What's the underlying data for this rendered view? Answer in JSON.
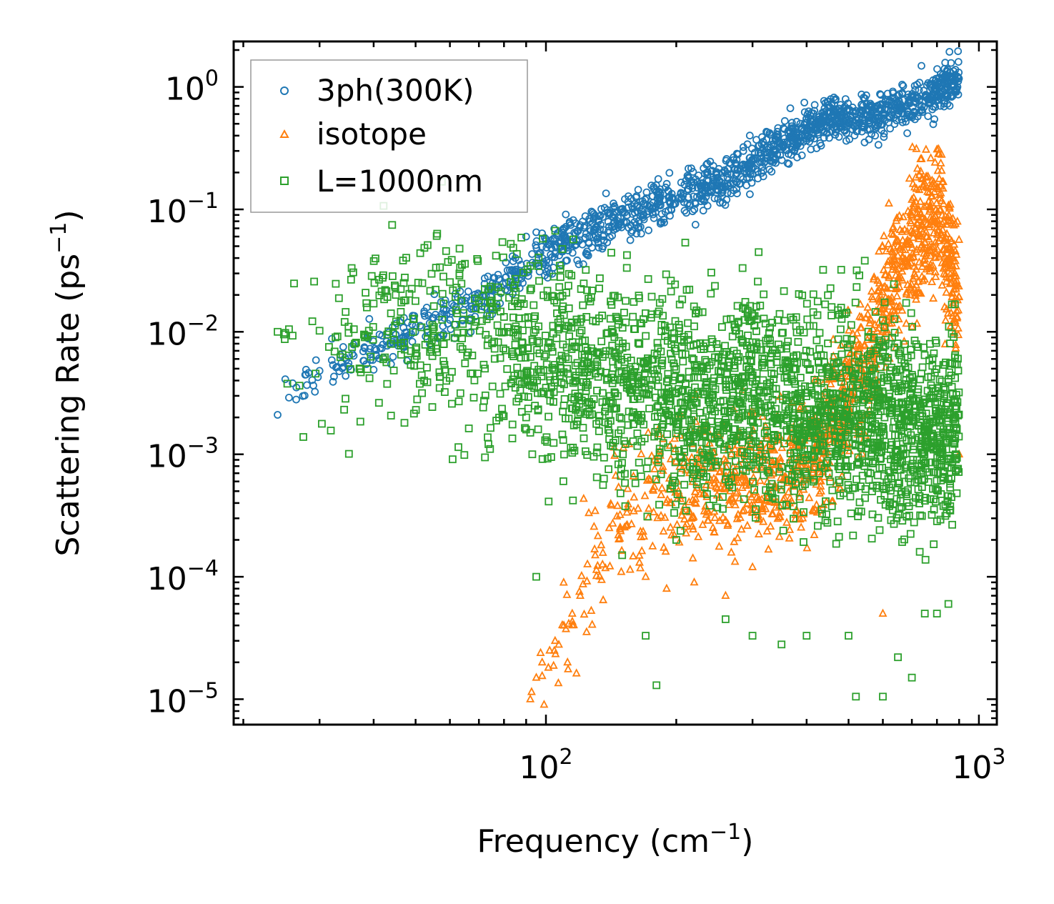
{
  "chart_data": {
    "type": "scatter",
    "title": "",
    "xlabel": "Frequency (cm",
    "xlabel_sup": "−1",
    "xlabel_end": ")",
    "ylabel": "Scattering Rate (ps",
    "ylabel_sup": "−1",
    "ylabel_end": ")",
    "xscale": "log",
    "yscale": "log",
    "xlim": [
      19,
      1100
    ],
    "ylim": [
      6.2e-06,
      2.35
    ],
    "x_ticks": [
      {
        "value": 100,
        "base": "10",
        "exp": "2"
      },
      {
        "value": 1000,
        "base": "10",
        "exp": "3"
      }
    ],
    "y_ticks": [
      {
        "value": 1,
        "base": "10",
        "exp": "0"
      },
      {
        "value": 0.1,
        "base": "10",
        "exp": "−1"
      },
      {
        "value": 0.01,
        "base": "10",
        "exp": "−2"
      },
      {
        "value": 0.001,
        "base": "10",
        "exp": "−3"
      },
      {
        "value": 0.0001,
        "base": "10",
        "exp": "−4"
      },
      {
        "value": 1e-05,
        "base": "10",
        "exp": "−5"
      }
    ],
    "legend": {
      "location": "upper-left",
      "entries": [
        {
          "label": "3ph(300K)",
          "marker": "circle",
          "color": "#1f77b4"
        },
        {
          "label": "isotope",
          "marker": "triangle",
          "color": "#ff7f0e"
        },
        {
          "label": "L=1000nm",
          "marker": "square",
          "color": "#2ca02c"
        }
      ]
    },
    "series": [
      {
        "name": "3ph(300K)",
        "marker": "circle",
        "color": "#1f77b4",
        "trend": [
          [
            24,
            0.0021
          ],
          [
            30,
            0.005
          ],
          [
            40,
            0.007
          ],
          [
            50,
            0.01
          ],
          [
            65,
            0.016
          ],
          [
            80,
            0.025
          ],
          [
            100,
            0.045
          ],
          [
            130,
            0.07
          ],
          [
            160,
            0.09
          ],
          [
            200,
            0.13
          ],
          [
            260,
            0.17
          ],
          [
            350,
            0.35
          ],
          [
            450,
            0.55
          ],
          [
            600,
            0.6
          ],
          [
            800,
            0.9
          ],
          [
            900,
            1.2
          ]
        ],
        "points": [
          [
            24,
            0.0021
          ],
          [
            25,
            0.0041
          ],
          [
            25.5,
            0.0029
          ],
          [
            26,
            0.0038
          ],
          [
            26.5,
            0.0028
          ],
          [
            30,
            0.0048
          ],
          [
            35,
            0.0052
          ],
          [
            35.5,
            0.0049
          ],
          [
            38,
            0.0058
          ],
          [
            39,
            0.0068
          ],
          [
            40,
            0.0049
          ],
          [
            40.5,
            0.0065
          ],
          [
            43,
            0.0077
          ],
          [
            45,
            0.0095
          ],
          [
            46,
            0.012
          ],
          [
            47,
            0.013
          ],
          [
            55,
            0.013
          ],
          [
            58,
            0.015
          ],
          [
            60,
            0.0125
          ],
          [
            62,
            0.016
          ],
          [
            65,
            0.018
          ],
          [
            70,
            0.02
          ],
          [
            75,
            0.022
          ],
          [
            85,
            0.04
          ],
          [
            90,
            0.06
          ],
          [
            95,
            0.065
          ],
          [
            100,
            0.055
          ],
          [
            110,
            0.06
          ]
        ]
      },
      {
        "name": "isotope",
        "marker": "triangle",
        "color": "#ff7f0e",
        "trend": [
          [
            92,
            1e-05
          ],
          [
            100,
            2e-05
          ],
          [
            110,
            4e-05
          ],
          [
            125,
            0.0001
          ],
          [
            140,
            0.00025
          ],
          [
            160,
            0.0004
          ],
          [
            200,
            0.0006
          ],
          [
            300,
            0.0006
          ],
          [
            400,
            0.0008
          ],
          [
            500,
            0.003
          ],
          [
            550,
            0.006
          ],
          [
            600,
            0.02
          ],
          [
            700,
            0.05
          ],
          [
            800,
            0.1
          ],
          [
            900,
            0.02
          ]
        ],
        "points": [
          [
            92,
            1e-05
          ],
          [
            95,
            1.5e-05
          ],
          [
            98,
            2e-05
          ],
          [
            102,
            2.5e-05
          ],
          [
            105,
            3e-05
          ],
          [
            110,
            4e-05
          ],
          [
            115,
            5e-05
          ],
          [
            120,
            7e-05
          ],
          [
            130,
            0.00015
          ],
          [
            140,
            0.00025
          ],
          [
            170,
            0.0001
          ],
          [
            190,
            8e-05
          ],
          [
            220,
            9e-05
          ],
          [
            260,
            7e-05
          ],
          [
            300,
            0.00012
          ],
          [
            500,
            0.008
          ],
          [
            520,
            0.006
          ],
          [
            580,
            0.004
          ],
          [
            600,
            5e-05
          ],
          [
            650,
            0.05
          ],
          [
            700,
            0.12
          ],
          [
            760,
            0.15
          ],
          [
            820,
            0.28
          ],
          [
            850,
            0.08
          ],
          [
            880,
            0.03
          ],
          [
            900,
            0.001
          ]
        ]
      },
      {
        "name": "L=1000nm",
        "marker": "square",
        "color": "#2ca02c",
        "trend": [
          [
            24,
            0.01
          ],
          [
            40,
            0.01
          ],
          [
            60,
            0.01
          ],
          [
            80,
            0.008
          ],
          [
            100,
            0.006
          ],
          [
            150,
            0.004
          ],
          [
            200,
            0.003
          ],
          [
            300,
            0.003
          ],
          [
            400,
            0.0025
          ],
          [
            500,
            0.002
          ],
          [
            600,
            0.002
          ],
          [
            700,
            0.0015
          ],
          [
            800,
            0.0015
          ],
          [
            900,
            0.002
          ]
        ],
        "points": [
          [
            24,
            0.01
          ],
          [
            25,
            0.0098
          ],
          [
            25.5,
            0.0105
          ],
          [
            26,
            0.0093
          ],
          [
            30,
            0.0102
          ],
          [
            35,
            0.0098
          ],
          [
            36,
            0.0105
          ],
          [
            38,
            0.0095
          ],
          [
            39,
            0.0102
          ],
          [
            40,
            0.017
          ],
          [
            43,
            0.0095
          ],
          [
            45,
            0.02
          ],
          [
            47,
            0.018
          ],
          [
            55,
            0.009
          ],
          [
            58,
            0.017
          ],
          [
            62,
            0.015
          ],
          [
            70,
            0.018
          ],
          [
            75,
            0.018
          ],
          [
            80,
            0.01
          ],
          [
            85,
            0.0035
          ],
          [
            88,
            0.0045
          ],
          [
            90,
            0.002
          ],
          [
            92,
            0.0015
          ],
          [
            93,
            0.001
          ],
          [
            95,
            0.0001
          ],
          [
            100,
            0.0035
          ],
          [
            110,
            0.0025
          ],
          [
            120,
            0.0022
          ],
          [
            150,
            0.00015
          ],
          [
            170,
            3.3e-05
          ],
          [
            180,
            1.3e-05
          ],
          [
            200,
            0.0002
          ],
          [
            260,
            4.5e-05
          ],
          [
            300,
            3.3e-05
          ],
          [
            350,
            2.8e-05
          ],
          [
            400,
            3.3e-05
          ],
          [
            500,
            3.3e-05
          ],
          [
            520,
            1.05e-05
          ],
          [
            600,
            1.05e-05
          ],
          [
            650,
            2.2e-05
          ],
          [
            700,
            1.5e-05
          ],
          [
            750,
            5e-05
          ],
          [
            800,
            5e-05
          ],
          [
            850,
            6e-05
          ]
        ]
      }
    ]
  }
}
